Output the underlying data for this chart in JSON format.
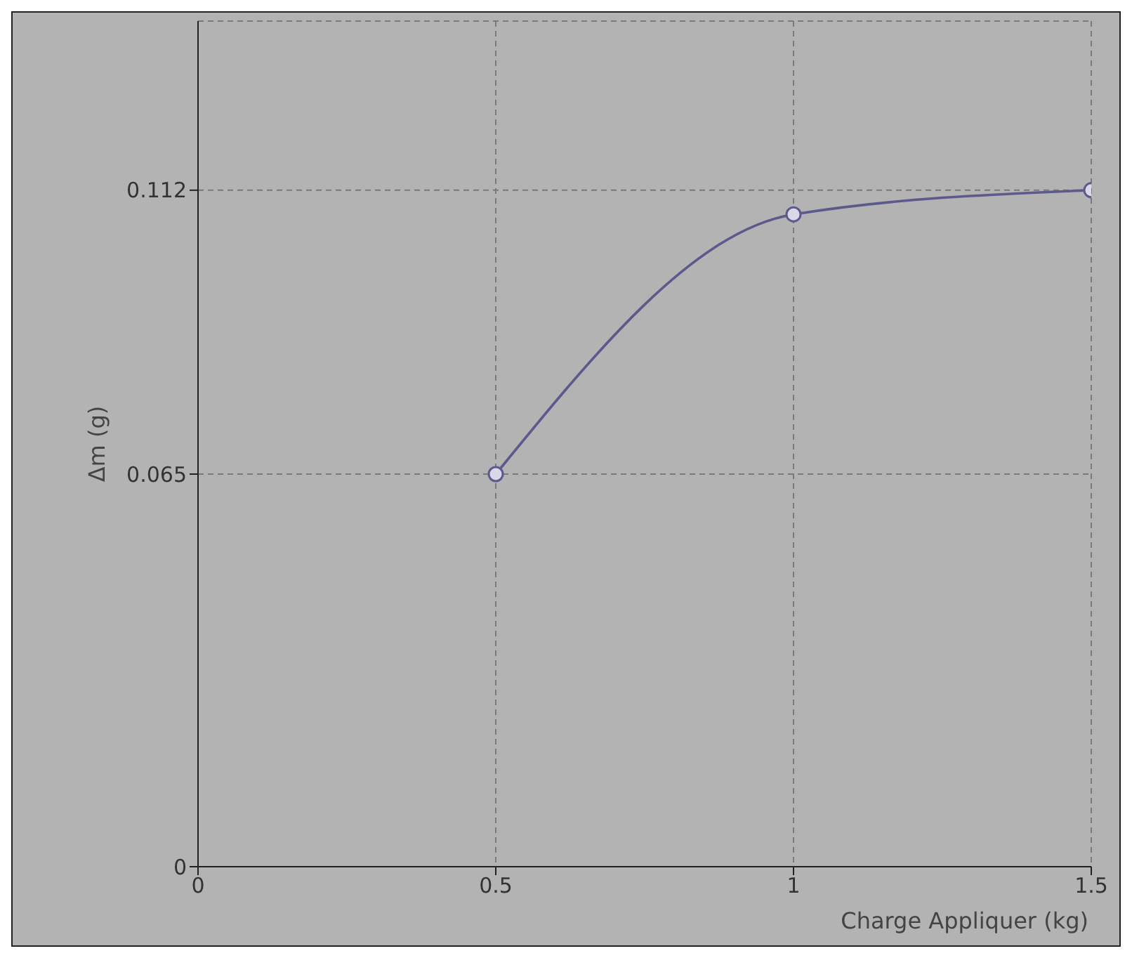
{
  "chart_data": {
    "type": "line",
    "xlabel": "Charge Appliquer (kg)",
    "ylabel": "Δm (g)",
    "x": [
      0.5,
      1,
      1.5
    ],
    "series": [
      {
        "color": "#5c5a8c",
        "values": [
          0.065,
          0.108,
          0.112
        ]
      }
    ],
    "xlim": [
      0,
      1.5
    ],
    "xticks": [
      0,
      0.5,
      1,
      1.5
    ],
    "ylim": [
      0,
      0.14
    ],
    "yticks": [
      0,
      0.065,
      0.112
    ],
    "grid": true,
    "marker": "circle",
    "line_style": "solid"
  }
}
